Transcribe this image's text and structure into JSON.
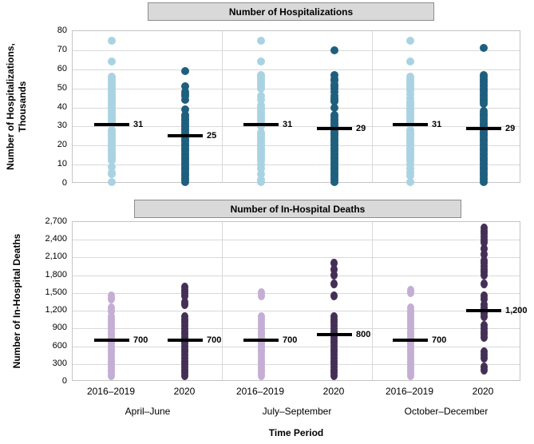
{
  "figure": {
    "x_axis": {
      "title": "Time Period",
      "tick_labels": [
        "2016–2019",
        "2020",
        "2016–2019",
        "2020",
        "2016–2019",
        "2020"
      ],
      "group_labels": [
        "April–June",
        "July–September",
        "October–December"
      ]
    }
  },
  "chart_data": [
    {
      "type": "scatter",
      "variant": "strip-plot-with-median-bars",
      "title": "Number of Hospitalizations",
      "ylabel": "Number of Hospitalizations, Thousands",
      "ylabel_lines": [
        "Number of Hospitalizations,",
        "Thousands"
      ],
      "xlabel": "Time Period",
      "ylim": [
        0,
        80
      ],
      "yticks": [
        0,
        10,
        20,
        30,
        40,
        50,
        60,
        70,
        80
      ],
      "ytick_labels": [
        "0",
        "10",
        "20",
        "30",
        "40",
        "50",
        "60",
        "70",
        "80"
      ],
      "grid": true,
      "legend_position": "none",
      "categories": [
        "April–June",
        "July–September",
        "October–December"
      ],
      "series_labels": [
        "2016–2019",
        "2020"
      ],
      "series_colors": [
        "#a9d3e3",
        "#1f5f7e"
      ],
      "groups": [
        {
          "category": "April–June",
          "series": [
            {
              "name": "2016–2019",
              "median": 31,
              "median_label": "31",
              "values": [
                75,
                64,
                56,
                55,
                54,
                53,
                52,
                51,
                50,
                49,
                48,
                47,
                46,
                45,
                44,
                43,
                42,
                41,
                40,
                39,
                38,
                37,
                36,
                35,
                34,
                33,
                32,
                31,
                28,
                27,
                26,
                25,
                24,
                23,
                22,
                21,
                20,
                19,
                18,
                17,
                16,
                15,
                14,
                13,
                12,
                9,
                6,
                5,
                1
              ]
            },
            {
              "name": "2020",
              "median": 25,
              "median_label": "25",
              "values": [
                59,
                51,
                48,
                47,
                46,
                44,
                39,
                36,
                35,
                34,
                33,
                32,
                31,
                30,
                29,
                28,
                27,
                26,
                25,
                24,
                23,
                22,
                21,
                20,
                19,
                18,
                17,
                16,
                15,
                14,
                13,
                12,
                11,
                10,
                9,
                8,
                7,
                6,
                5,
                4,
                3,
                2,
                1
              ]
            }
          ]
        },
        {
          "category": "July–September",
          "series": [
            {
              "name": "2016–2019",
              "median": 31,
              "median_label": "31",
              "values": [
                75,
                64,
                57,
                56,
                55,
                54,
                53,
                52,
                51,
                50,
                46,
                44,
                41,
                40,
                39,
                38,
                37,
                36,
                35,
                34,
                33,
                32,
                31,
                30,
                27,
                26,
                25,
                24,
                23,
                22,
                21,
                20,
                19,
                18,
                17,
                16,
                15,
                14,
                13,
                12,
                10,
                8,
                5,
                2,
                1
              ]
            },
            {
              "name": "2020",
              "median": 29,
              "median_label": "29",
              "values": [
                70,
                57,
                55,
                54,
                52,
                51,
                50,
                48,
                46,
                45,
                44,
                43,
                40,
                36,
                35,
                34,
                33,
                32,
                31,
                30,
                29,
                28,
                27,
                26,
                25,
                24,
                23,
                22,
                21,
                20,
                19,
                18,
                17,
                16,
                15,
                14,
                13,
                12,
                11,
                10,
                9,
                8,
                7,
                6,
                5,
                4,
                3,
                2,
                1
              ]
            }
          ]
        },
        {
          "category": "October–December",
          "series": [
            {
              "name": "2016–2019",
              "median": 31,
              "median_label": "31",
              "values": [
                75,
                64,
                56,
                55,
                54,
                53,
                52,
                51,
                50,
                49,
                47,
                45,
                43,
                42,
                41,
                40,
                39,
                38,
                37,
                36,
                35,
                34,
                33,
                32,
                31,
                28,
                27,
                26,
                25,
                24,
                23,
                22,
                21,
                20,
                19,
                18,
                17,
                16,
                15,
                14,
                13,
                12,
                10,
                8,
                6,
                4,
                1
              ]
            },
            {
              "name": "2020",
              "median": 29,
              "median_label": "29",
              "values": [
                71,
                57,
                56,
                55,
                54,
                53,
                52,
                51,
                50,
                49,
                48,
                47,
                46,
                45,
                44,
                43,
                42,
                38,
                37,
                36,
                35,
                34,
                33,
                32,
                31,
                30,
                29,
                28,
                27,
                26,
                25,
                24,
                23,
                22,
                21,
                20,
                19,
                18,
                17,
                16,
                15,
                14,
                13,
                12,
                11,
                10,
                9,
                8,
                7,
                6,
                5,
                4,
                3,
                2,
                1
              ]
            }
          ]
        }
      ]
    },
    {
      "type": "scatter",
      "variant": "strip-plot-with-median-bars",
      "title": "Number of In-Hospital Deaths",
      "ylabel": "Number of In-Hospital Deaths",
      "ylabel_lines": [
        "Number of In-Hospital Deaths"
      ],
      "xlabel": "Time Period",
      "ylim": [
        0,
        2700
      ],
      "yticks": [
        0,
        300,
        600,
        900,
        1200,
        1500,
        1800,
        2100,
        2400,
        2700
      ],
      "ytick_labels": [
        "0",
        "300",
        "600",
        "900",
        "1,200",
        "1,500",
        "1,800",
        "2,100",
        "2,400",
        "2,700"
      ],
      "grid": true,
      "legend_position": "none",
      "categories": [
        "April–June",
        "July–September",
        "October–December"
      ],
      "series_labels": [
        "2016–2019",
        "2020"
      ],
      "series_colors": [
        "#c4aed4",
        "#443056"
      ],
      "groups": [
        {
          "category": "April–June",
          "series": [
            {
              "name": "2016–2019",
              "median": 700,
              "median_label": "700",
              "values": [
                1450,
                1400,
                1250,
                1200,
                1100,
                1050,
                1000,
                950,
                900,
                850,
                800,
                750,
                700,
                650,
                600,
                550,
                500,
                450,
                400,
                350,
                300,
                250,
                200,
                150,
                100
              ]
            },
            {
              "name": "2020",
              "median": 700,
              "median_label": "700",
              "values": [
                1600,
                1550,
                1500,
                1450,
                1350,
                1300,
                1100,
                1050,
                1000,
                950,
                900,
                850,
                800,
                750,
                700,
                650,
                600,
                550,
                500,
                450,
                400,
                350,
                300,
                250,
                200,
                150,
                100
              ]
            }
          ]
        },
        {
          "category": "July–September",
          "series": [
            {
              "name": "2016–2019",
              "median": 700,
              "median_label": "700",
              "values": [
                1500,
                1450,
                1100,
                1050,
                1000,
                950,
                900,
                850,
                800,
                750,
                700,
                650,
                600,
                550,
                500,
                450,
                400,
                350,
                300,
                250,
                200,
                150,
                100
              ]
            },
            {
              "name": "2020",
              "median": 800,
              "median_label": "800",
              "values": [
                2000,
                1900,
                1800,
                1650,
                1450,
                1100,
                1050,
                1000,
                950,
                900,
                850,
                800,
                750,
                700,
                650,
                600,
                550,
                500,
                450,
                400,
                350,
                300,
                250,
                200,
                150,
                100
              ]
            }
          ]
        },
        {
          "category": "October–December",
          "series": [
            {
              "name": "2016–2019",
              "median": 700,
              "median_label": "700",
              "values": [
                1550,
                1500,
                1250,
                1200,
                1150,
                1100,
                1050,
                1000,
                950,
                900,
                850,
                800,
                750,
                700,
                650,
                600,
                550,
                500,
                450,
                400,
                350,
                300,
                250,
                200,
                150,
                100
              ]
            },
            {
              "name": "2020",
              "median": 1200,
              "median_label": "1,200",
              "values": [
                2600,
                2550,
                2500,
                2450,
                2400,
                2350,
                2250,
                2150,
                2050,
                2000,
                1950,
                1900,
                1850,
                1800,
                1650,
                1450,
                1400,
                1300,
                1250,
                1200,
                1150,
                1100,
                950,
                900,
                850,
                800,
                750,
                500,
                450,
                400,
                250,
                200
              ]
            }
          ]
        }
      ]
    }
  ]
}
